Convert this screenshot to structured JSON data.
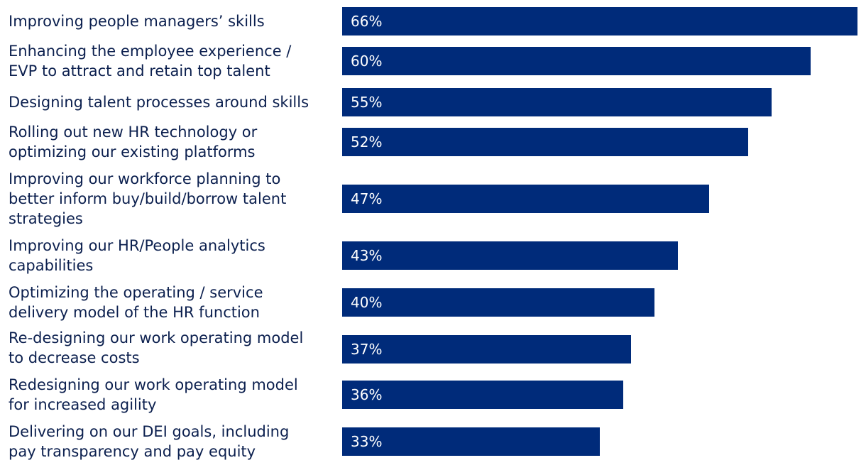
{
  "colors": {
    "bar": "#002b7a",
    "label": "#0b1f4e",
    "bar_text": "#ffffff"
  },
  "chart_data": {
    "type": "bar",
    "orientation": "horizontal",
    "categories": [
      "Improving people managers’ skills",
      "Enhancing the employee experience /\nEVP to attract and retain top talent",
      "Designing talent processes around skills",
      "Rolling out new HR technology or\noptimizing our existing platforms",
      "Improving our workforce planning to\nbetter inform buy/build/borrow talent\nstrategies",
      "Improving our HR/People analytics\ncapabilities",
      "Optimizing the operating / service\ndelivery model of the HR function",
      "Re-designing our work operating model\nto decrease costs",
      "Redesigning our work operating model\nfor increased agility",
      "Delivering on our DEI goals, including\npay transparency and pay equity"
    ],
    "values": [
      66,
      60,
      55,
      52,
      47,
      43,
      40,
      37,
      36,
      33
    ],
    "data_labels": [
      "66%",
      "60%",
      "55%",
      "52%",
      "47%",
      "43%",
      "40%",
      "37%",
      "36%",
      "33%"
    ],
    "unit": "%",
    "xlim": [
      0,
      66
    ],
    "grid": false
  }
}
